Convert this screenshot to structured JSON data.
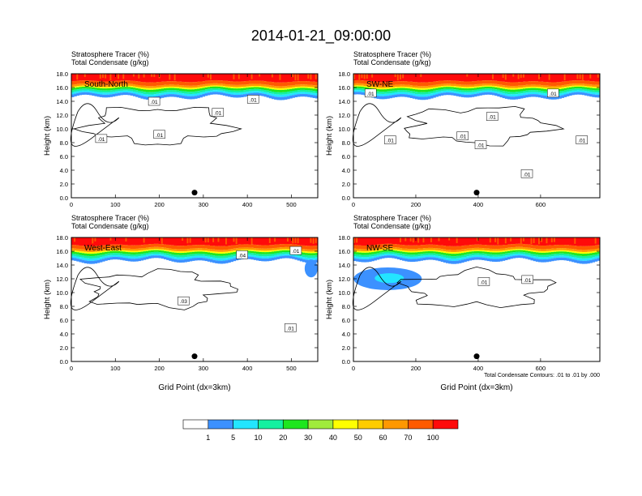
{
  "title": "2014-01-21_09:00:00",
  "chart_data": [
    {
      "type": "heatmap",
      "label": "South-North",
      "line1": "Stratosphere Tracer   (%)",
      "line2": "Total Condensate   (g/kg)",
      "ylabel": "Height (km)",
      "xlabel": "",
      "xlim": [
        0,
        560
      ],
      "xticks": [
        "0",
        "100",
        "200",
        "300",
        "400",
        "500"
      ],
      "xtick_values": [
        0,
        100,
        200,
        300,
        400,
        500
      ],
      "ylim": [
        0,
        18
      ],
      "yticks": [
        "0.0",
        "2.0",
        "4.0",
        "6.0",
        "8.0",
        "10.0",
        "12.0",
        "14.0",
        "16.0",
        "18.0"
      ],
      "marker_x": 280,
      "contour_labels": [
        ".01",
        ".01",
        ".01",
        ".01",
        ".01"
      ],
      "contour_label_pos": [
        [
          188,
          14.0
        ],
        [
          413,
          14.3
        ],
        [
          68,
          8.6
        ],
        [
          200,
          9.2
        ],
        [
          333,
          12.4
        ]
      ]
    },
    {
      "type": "heatmap",
      "label": "SW-NE",
      "line1": "Stratosphere Tracer   (%)",
      "line2": "Total Condensate   (g/kg)",
      "ylabel": "Height (km)",
      "xlabel": "",
      "xlim": [
        0,
        790
      ],
      "xticks": [
        "0",
        "200",
        "400",
        "600"
      ],
      "xtick_values": [
        0,
        200,
        400,
        600
      ],
      "ylim": [
        0,
        18
      ],
      "yticks": [
        "0.0",
        "2.0",
        "4.0",
        "6.0",
        "8.0",
        "10.0",
        "12.0",
        "14.0",
        "16.0",
        "18.0"
      ],
      "marker_x": 395,
      "contour_labels": [
        ".01",
        ".01",
        ".01",
        ".01",
        ".01",
        ".01",
        ".01",
        ".01"
      ],
      "contour_label_pos": [
        [
          55,
          15.2
        ],
        [
          640,
          15.2
        ],
        [
          118,
          8.4
        ],
        [
          350,
          9.0
        ],
        [
          408,
          7.7
        ],
        [
          445,
          11.8
        ],
        [
          556,
          3.5
        ],
        [
          732,
          8.4
        ]
      ]
    },
    {
      "type": "heatmap",
      "label": "West-East",
      "line1": "Stratosphere Tracer   (%)",
      "line2": "Total Condensate   (g/kg)",
      "ylabel": "Height (km)",
      "xlabel": "Grid Point (dx=3km)",
      "xlim": [
        0,
        560
      ],
      "xticks": [
        "0",
        "100",
        "200",
        "300",
        "400",
        "500"
      ],
      "xtick_values": [
        0,
        100,
        200,
        300,
        400,
        500
      ],
      "ylim": [
        0,
        18
      ],
      "yticks": [
        "0.0",
        "2.0",
        "4.0",
        "6.0",
        "8.0",
        "10.0",
        "12.0",
        "14.0",
        "16.0",
        "18.0"
      ],
      "marker_x": 280,
      "contour_labels": [
        ".04",
        ".01",
        ".03",
        ".01"
      ],
      "contour_label_pos": [
        [
          388,
          15.5
        ],
        [
          510,
          16.1
        ],
        [
          255,
          8.8
        ],
        [
          498,
          4.9
        ]
      ]
    },
    {
      "type": "heatmap",
      "label": "NW-SE",
      "line1": "Stratosphere Tracer   (%)",
      "line2": "Total Condensate   (g/kg)",
      "ylabel": "Height (km)",
      "xlabel": "Grid Point (dx=3km)",
      "xlim": [
        0,
        790
      ],
      "xticks": [
        "0",
        "200",
        "400",
        "600"
      ],
      "xtick_values": [
        0,
        200,
        400,
        600
      ],
      "ylim": [
        0,
        18
      ],
      "yticks": [
        "0.0",
        "2.0",
        "4.0",
        "6.0",
        "8.0",
        "10.0",
        "12.0",
        "14.0",
        "16.0",
        "18.0"
      ],
      "marker_x": 395,
      "contour_labels": [
        ".01",
        ".01"
      ],
      "contour_label_pos": [
        [
          418,
          11.6
        ],
        [
          558,
          11.9
        ]
      ],
      "note": "Total Condensate Contours: .01 to .01 by .000"
    }
  ],
  "colorbar": {
    "labels": [
      "1",
      "5",
      "10",
      "20",
      "30",
      "40",
      "50",
      "60",
      "70",
      "100"
    ],
    "colors": [
      "#ffffff",
      "#3c91ff",
      "#23e5ff",
      "#14f0a0",
      "#1ee61e",
      "#a0eb3c",
      "#ffff00",
      "#ffcc00",
      "#ff9800",
      "#ff5a00",
      "#ff0a0a"
    ]
  }
}
